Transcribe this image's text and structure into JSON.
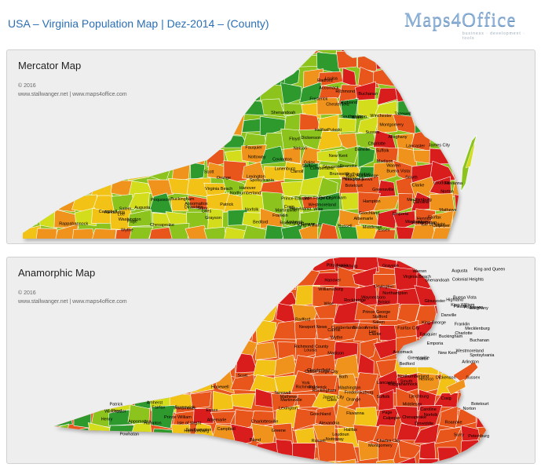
{
  "page_title": "USA – Virginia Population Map | Dez-2014 – (County)",
  "logo": {
    "text": "Maps4Office",
    "tagline": "business · development · tools"
  },
  "panels": [
    {
      "title": "Mercator Map",
      "copyright": "© 2016",
      "credits": "www.stallwanger.net  |  www.maps4office.com"
    },
    {
      "title": "Anamorphic Map",
      "copyright": "© 2016",
      "credits": "www.stallwanger.net  |  www.maps4office.com"
    }
  ],
  "colors": {
    "very_low": "#2f9a2f",
    "low": "#8cc31e",
    "mid_low": "#d4dd1f",
    "mid": "#f2c318",
    "mid_high": "#f0931c",
    "high": "#e9571c",
    "very_high": "#d91c1c"
  },
  "mercator_labels": [
    "Frederick",
    "Loudoun",
    "Clarke",
    "Warren",
    "Winchester",
    "Fauquier",
    "Fairfax",
    "Alexandria",
    "Shenandoah",
    "Rappahannock",
    "Prince William",
    "Rockingham",
    "Page",
    "Culpeper",
    "Stafford",
    "Madison",
    "Greene",
    "Orange",
    "Spotsylvania",
    "Caroline",
    "Highland",
    "Augusta",
    "Waynesboro",
    "Albemarle",
    "Louisa",
    "Hanover",
    "Bath",
    "Rockbridge",
    "Nelson",
    "Fluvanna",
    "Goochland",
    "Alleghany",
    "Covington",
    "Iron Forge City",
    "Lexington",
    "Buena Vista",
    "Buckingham",
    "Cumberland",
    "Powhatan",
    "Henrico",
    "Richmond",
    "Craig",
    "Botetourt",
    "Amherst",
    "Appomattox",
    "Chesterfield",
    "Bedford",
    "Campbell",
    "Prince Edward",
    "Nottoway",
    "Dinwiddie",
    "Petersburg",
    "Roanoke",
    "Salem",
    "Franklin",
    "Pittsylvania",
    "Charlotte",
    "Lunenburg",
    "Brunswick",
    "Sussex",
    "Southampton",
    "Buchanan",
    "Dickenson",
    "Tazewell",
    "Bland",
    "Giles",
    "Wise",
    "Norton",
    "Russell",
    "Smyth",
    "Wythe",
    "Pulaski",
    "Floyd",
    "Lee",
    "Scott",
    "Washington",
    "Grayson",
    "Galax",
    "Carroll",
    "Patrick",
    "Henry",
    "Martinsville",
    "Danville",
    "Halifax",
    "Mecklenburg",
    "Greensville",
    "Suffolk",
    "Chesapeake",
    "Virginia Beach",
    "Norfolk",
    "Hampton",
    "Newport News",
    "Isle of Wight",
    "Surry",
    "James City",
    "New Kent",
    "King William",
    "Essex",
    "Westmoreland",
    "Northumberland",
    "Lancaster",
    "Middlesex",
    "Mathews",
    "Gloucester",
    "Poquoson",
    "Accomack",
    "Northampton",
    "Emporia",
    "Radford",
    "Montgomery"
  ],
  "anamorphic_labels": [
    "Loudoun",
    "Fairfax",
    "Fairfax City",
    "Alexandria",
    "Arlington",
    "Prince William",
    "Winchester",
    "Frederick",
    "Clarke",
    "Warren",
    "Shenandoah",
    "Rappahannock",
    "Fauquier",
    "Page",
    "Rockingham",
    "Harrisonburg",
    "Culpeper",
    "Madison",
    "Stafford",
    "Greene",
    "Orange",
    "Augusta",
    "Waynesboro",
    "Albemarle",
    "Charlottesville",
    "Spotsylvania",
    "Fredericksburg",
    "Louisa",
    "Caroline",
    "Hanover",
    "Henrico",
    "Richmond",
    "Chesterfield",
    "Colonial Heights",
    "Hopewell",
    "Prince George",
    "Petersburg",
    "Dinwiddie",
    "Nottoway",
    "Amelia",
    "Powhatan",
    "Goochland",
    "Fluvanna",
    "Buckingham",
    "Cumberland",
    "Appomattox",
    "Campbell",
    "Lynchburg",
    "Bedford",
    "Amherst",
    "Nelson",
    "Rockbridge",
    "Lexington",
    "Buena Vista",
    "Bath",
    "Highland",
    "Alleghany",
    "Covington",
    "Clifton Forge City",
    "Craig",
    "Botetourt",
    "Roanoke",
    "Salem",
    "Montgomery",
    "Radford",
    "Pulaski",
    "Giles",
    "Bland",
    "Wythe",
    "Smyth",
    "Tazewell",
    "Buchanan",
    "Dickenson",
    "Russell",
    "Wise",
    "Norton",
    "Lee",
    "Scott",
    "Washington",
    "Bristol",
    "Grayson",
    "Galax",
    "Carroll",
    "Floyd",
    "Franklin",
    "Patrick",
    "Henry",
    "Martinsville",
    "Pittsylvania",
    "Danville",
    "Halifax",
    "Charlotte",
    "Lunenburg",
    "Mecklenburg",
    "Brunswick",
    "Greensville",
    "Emporia",
    "Sussex",
    "Southampton",
    "Isle of Wight",
    "Surry",
    "James City",
    "Williamsburg",
    "York",
    "Newport News",
    "Hampton",
    "Poquoson",
    "Norfolk",
    "Portsmouth",
    "Chesapeake",
    "Virginia Beach",
    "Suffolk",
    "New Kent",
    "Charles City",
    "King George",
    "Westmoreland",
    "Richmond County",
    "Northumberland",
    "Lancaster",
    "Middlesex",
    "Essex",
    "King and Queen",
    "King William",
    "Gloucester",
    "Mathews",
    "Accomack",
    "Northampton"
  ]
}
